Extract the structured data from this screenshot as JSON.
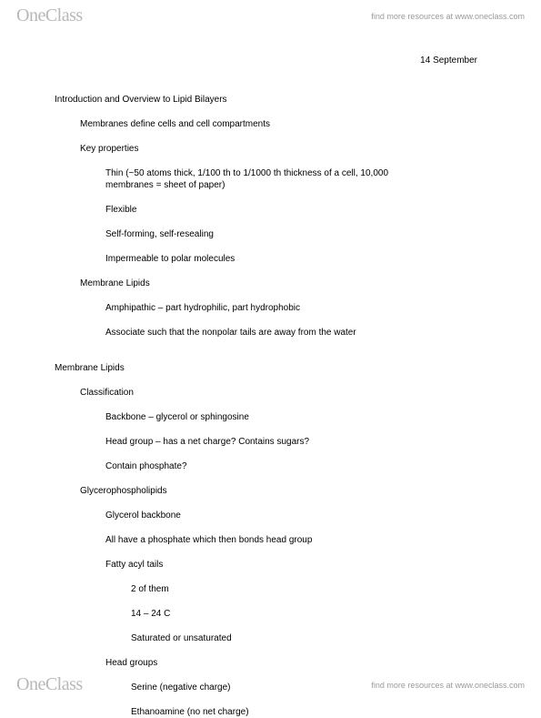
{
  "brand": {
    "logo_text": "OneClass",
    "resources_text": "find more resources at www.oneclass.com"
  },
  "date": "14 September",
  "section1": {
    "title": "Introduction and Overview to Lipid Bilayers",
    "line1": "Membranes define cells and cell compartments",
    "key_props_title": "Key properties",
    "kp1": "Thin (~50 atoms thick, 1/100 th to 1/1000 th thickness of a cell, 10,000 membranes = sheet of paper)",
    "kp2": "Flexible",
    "kp3": "Self-forming, self-resealing",
    "kp4": "Impermeable to polar molecules",
    "ml_title": "Membrane Lipids",
    "ml1": "Amphipathic – part hydrophilic, part hydrophobic",
    "ml2": "Associate such that the nonpolar tails are away from the water"
  },
  "section2": {
    "title": "Membrane Lipids",
    "class_title": "Classification",
    "c1": "Backbone – glycerol or sphingosine",
    "c2": "Head group – has a net charge? Contains sugars?",
    "c3": "Contain phosphate?",
    "gpl_title": "Glycerophospholipids",
    "g1": "Glycerol backbone",
    "g2": "All have a phosphate which then bonds head group",
    "g3": "Fatty acyl tails",
    "g3a": "2 of them",
    "g3b": "14 – 24 C",
    "g3c": "Saturated or unsaturated",
    "g4": "Head groups",
    "g4a": "Serine (negative charge)",
    "g4b": "Ethanoamine (no net charge)"
  }
}
